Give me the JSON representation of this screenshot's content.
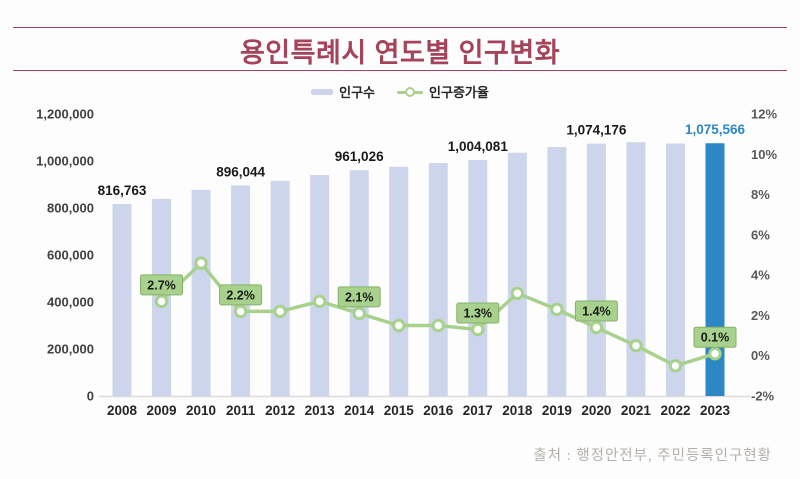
{
  "header": {
    "title": "용인특례시 연도별 인구변화"
  },
  "legend": {
    "bar_label": "인구수",
    "line_label": "인구증가율"
  },
  "footer": {
    "source": "출처 : 행정안전부, 주민등록인구현황"
  },
  "colors": {
    "background": "#fdfdfd",
    "title": "#a4435a",
    "rule": "#a4435a",
    "bar": "#ccd5ec",
    "bar_highlight": "#2d87c4",
    "line": "#a9d18e",
    "marker_fill": "#ffffff",
    "label_box_bg": "#a9d18e",
    "label_box_border": "#86b166",
    "label_box_text": "#1a1a1a",
    "bar_value_text": "#1a1a1a",
    "bar_value_highlight": "#2d87c4",
    "left_axis_text": "#404040",
    "right_axis_text": "#595959",
    "year_text": "#262626",
    "axis_line": "#dcdcdc",
    "source_text": "#b5afa9"
  },
  "chart_data": {
    "type": "combo-bar-line",
    "title": "용인특례시 연도별 인구변화",
    "categories": [
      "2008",
      "2009",
      "2010",
      "2011",
      "2012",
      "2013",
      "2014",
      "2015",
      "2016",
      "2017",
      "2018",
      "2019",
      "2020",
      "2021",
      "2022",
      "2023"
    ],
    "series": [
      {
        "name": "인구수",
        "type": "bar",
        "axis": "left",
        "values": [
          816763,
          838800,
          876800,
          896044,
          915800,
          940500,
          961026,
          975400,
          991200,
          1004081,
          1035200,
          1059300,
          1074176,
          1079900,
          1074500,
          1075566
        ]
      },
      {
        "name": "인구증가율",
        "type": "line",
        "axis": "right",
        "values": [
          null,
          2.7,
          4.6,
          2.2,
          2.2,
          2.7,
          2.1,
          1.5,
          1.5,
          1.3,
          3.1,
          2.3,
          1.4,
          0.5,
          -0.5,
          0.1
        ]
      }
    ],
    "bar_value_labels": {
      "2008": "816,763",
      "2011": "896,044",
      "2014": "961,026",
      "2017": "1,004,081",
      "2020": "1,074,176",
      "2023": "1,075,566"
    },
    "growth_labels": {
      "2009": "2.7%",
      "2011": "2.2%",
      "2014": "2.1%",
      "2017": "1.3%",
      "2020": "1.4%",
      "2023": "0.1%"
    },
    "left_axis": {
      "min": 0,
      "max": 1200000,
      "step": 200000,
      "tick_labels": [
        "0",
        "200,000",
        "400,000",
        "600,000",
        "800,000",
        "1,000,000",
        "1,200,000"
      ]
    },
    "right_axis": {
      "min": -2,
      "max": 12,
      "step": 2,
      "tick_labels": [
        "-2%",
        "0%",
        "2%",
        "4%",
        "6%",
        "8%",
        "10%",
        "12%"
      ]
    },
    "highlight_category": "2023",
    "legend_position": "top",
    "gridlines": false
  }
}
